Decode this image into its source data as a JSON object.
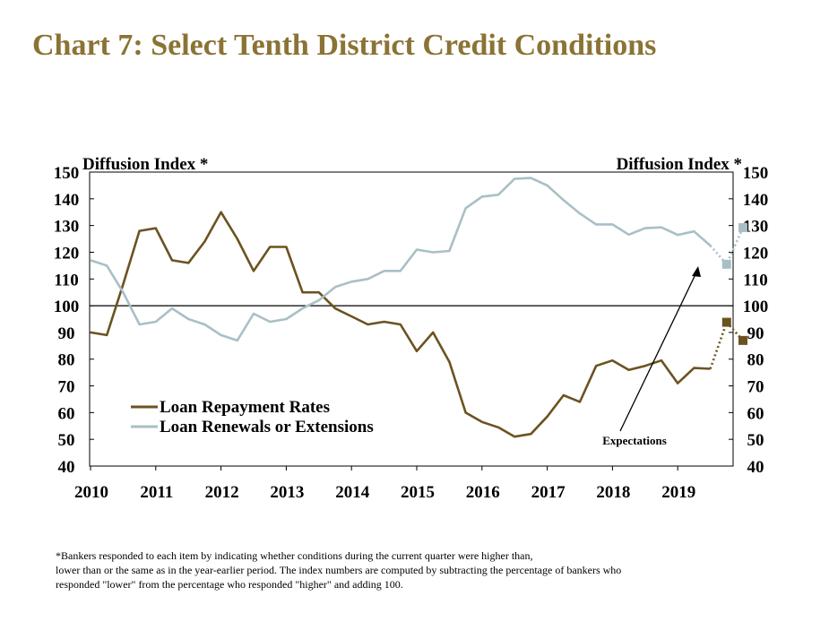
{
  "title": "Chart 7: Select Tenth District Credit Conditions",
  "footnote": [
    "*Bankers responded to each item by indicating whether conditions during the current quarter were higher than,",
    "lower than or the same as in the year-earlier period.  The index numbers are computed by subtracting the percentage of bankers who",
    "responded \"lower\" from the percentage who responded \"higher\" and adding 100."
  ],
  "chart_data": {
    "type": "line",
    "ylabel_left": "Diffusion Index *",
    "ylabel_right": "Diffusion Index *",
    "ylim": [
      40,
      150
    ],
    "y_ticks": [
      40,
      50,
      60,
      70,
      80,
      90,
      100,
      110,
      120,
      130,
      140,
      150
    ],
    "x_ticks": [
      "2010",
      "2011",
      "2012",
      "2013",
      "2014",
      "2015",
      "2016",
      "2017",
      "2018",
      "2019"
    ],
    "reference_line": 100,
    "legend_position": "lower-left",
    "annotation": "Expectations",
    "series": [
      {
        "name": "Loan Repayment Rates",
        "color": "#6b5320",
        "values": [
          90,
          89,
          108,
          128,
          129,
          117,
          116,
          124,
          135,
          125,
          113,
          122,
          122,
          105,
          105,
          99,
          96,
          93,
          94,
          93,
          83,
          90,
          79,
          60,
          56.5,
          54.5,
          51,
          52,
          58.5,
          66.5,
          64,
          77.5,
          79.5,
          76,
          77.5,
          79.5,
          71,
          76.7,
          76.4
        ],
        "expectations": [
          93.8,
          87
        ]
      },
      {
        "name": "Loan Renewals or Extensions",
        "color": "#a9bfc6",
        "values": [
          117,
          115,
          105,
          93,
          94,
          99,
          95,
          93,
          89,
          87,
          97,
          94,
          95,
          99,
          102,
          107,
          109,
          110,
          113,
          113,
          121,
          120,
          120.5,
          136.5,
          140.8,
          141.5,
          147.5,
          147.8,
          145,
          139.5,
          134.5,
          130.4,
          130.4,
          126.6,
          129,
          129.3,
          126.5,
          127.8,
          122.5
        ],
        "expectations": [
          115.5,
          129.2
        ]
      }
    ]
  }
}
